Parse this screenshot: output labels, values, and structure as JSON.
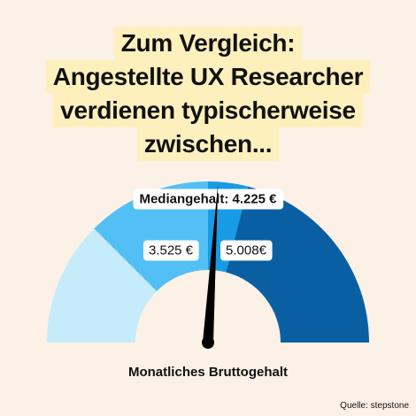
{
  "title_lines": [
    "Zum Vergleich:",
    "Angestellte UX Researcher",
    "verdienen typischerweise",
    "zwischen..."
  ],
  "source": "Quelle: stepstone",
  "chart_data": {
    "type": "gauge",
    "title": "",
    "xlabel": "Monatliches Bruttogehalt",
    "segments": [
      {
        "color": "#c6ecfc"
      },
      {
        "color": "#52c0f4"
      },
      {
        "color": "#189be6"
      },
      {
        "color": "#0a5fa3"
      }
    ],
    "range_fraction": [
      0.0,
      0.25,
      0.5,
      0.58,
      1.0
    ],
    "low": {
      "value": 3525,
      "label": "3.525 €"
    },
    "median": {
      "value": 4225,
      "label": "Mediangehalt: 4.225 €",
      "fraction": 0.52
    },
    "high": {
      "value": 5008,
      "label": "5.008€"
    }
  }
}
